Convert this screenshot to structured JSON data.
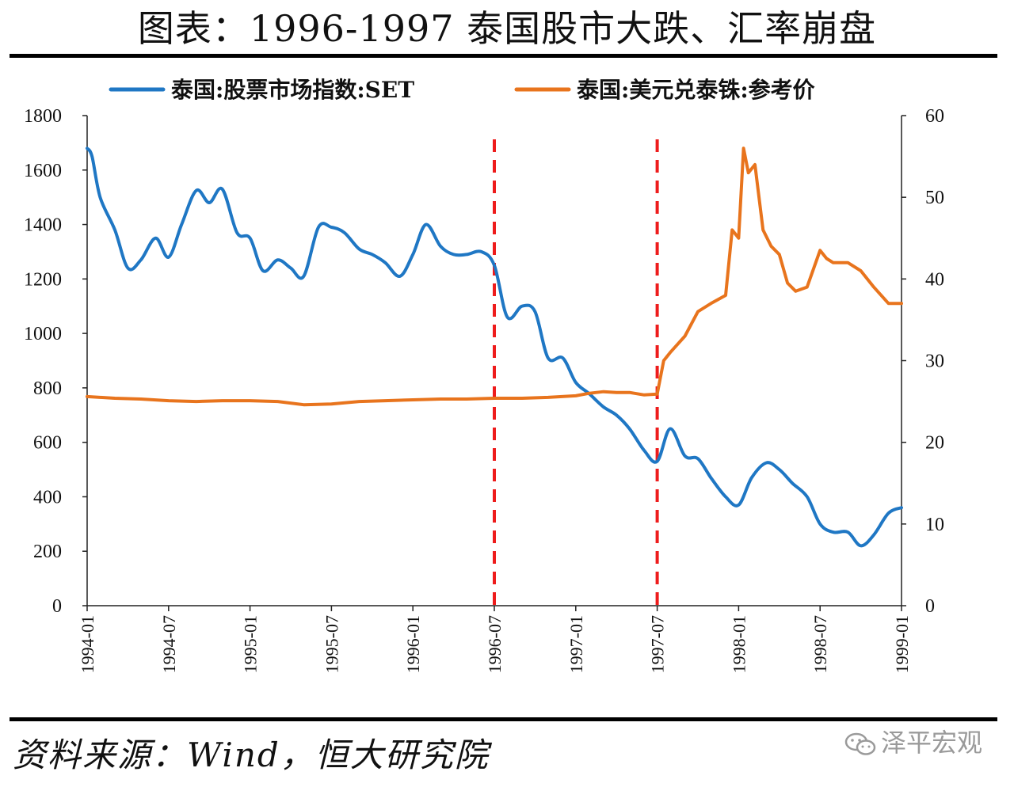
{
  "title": "图表：1996-1997 泰国股市大跌、汇率崩盘",
  "source": "资料来源：Wind，恒大研究院",
  "watermark": "泽平宏观",
  "watermark_icon": "wechat-icon",
  "colors": {
    "set": "#1f77c4",
    "fx": "#e8741d",
    "vline": "#ee1c1c",
    "axis": "#222222"
  },
  "chart_data": {
    "type": "line",
    "title": "",
    "x_tick_labels": [
      "1994-01",
      "1994-07",
      "1995-01",
      "1995-07",
      "1996-01",
      "1996-07",
      "1997-01",
      "1997-07",
      "1998-01",
      "1998-07",
      "1999-01"
    ],
    "xlim": [
      "1994-01",
      "1999-01"
    ],
    "y_left": {
      "lim": [
        0,
        1800
      ],
      "ticks": [
        0,
        200,
        400,
        600,
        800,
        1000,
        1200,
        1400,
        1600,
        1800
      ]
    },
    "y_right": {
      "lim": [
        0,
        60
      ],
      "ticks": [
        0,
        10,
        20,
        30,
        40,
        50,
        60
      ]
    },
    "legend_position": "top",
    "vertical_reference_lines": [
      {
        "x": "1996-07",
        "style": "dashed",
        "color": "#ee1c1c"
      },
      {
        "x": "1997-07",
        "style": "dashed",
        "color": "#ee1c1c"
      }
    ],
    "series": [
      {
        "name": "泰国:股票市场指数:SET",
        "axis": "left",
        "color": "#1f77c4",
        "x": [
          1994.0,
          1994.03,
          1994.08,
          1994.17,
          1994.25,
          1994.33,
          1994.42,
          1994.5,
          1994.58,
          1994.67,
          1994.75,
          1994.83,
          1994.92,
          1995.0,
          1995.08,
          1995.17,
          1995.25,
          1995.33,
          1995.42,
          1995.5,
          1995.58,
          1995.67,
          1995.75,
          1995.83,
          1995.92,
          1996.0,
          1996.08,
          1996.17,
          1996.25,
          1996.33,
          1996.42,
          1996.5,
          1996.58,
          1996.67,
          1996.75,
          1996.83,
          1996.92,
          1997.0,
          1997.08,
          1997.17,
          1997.25,
          1997.33,
          1997.42,
          1997.5,
          1997.58,
          1997.67,
          1997.75,
          1997.83,
          1997.92,
          1998.0,
          1998.08,
          1998.17,
          1998.25,
          1998.33,
          1998.42,
          1998.5,
          1998.58,
          1998.67,
          1998.75,
          1998.83,
          1998.92,
          1999.0
        ],
        "y": [
          1680,
          1650,
          1500,
          1380,
          1240,
          1270,
          1350,
          1280,
          1400,
          1525,
          1480,
          1530,
          1370,
          1350,
          1230,
          1270,
          1240,
          1210,
          1390,
          1390,
          1370,
          1310,
          1290,
          1260,
          1210,
          1290,
          1400,
          1320,
          1290,
          1290,
          1300,
          1250,
          1060,
          1100,
          1080,
          910,
          910,
          820,
          780,
          730,
          700,
          650,
          570,
          530,
          650,
          550,
          540,
          470,
          400,
          370,
          470,
          525,
          500,
          450,
          400,
          300,
          270,
          270,
          220,
          260,
          340,
          360
        ]
      },
      {
        "name": "泰国:美元兑泰铢:参考价",
        "axis": "right",
        "color": "#e8741d",
        "x": [
          1994.0,
          1994.17,
          1994.33,
          1994.5,
          1994.67,
          1994.83,
          1995.0,
          1995.17,
          1995.33,
          1995.5,
          1995.67,
          1995.83,
          1996.0,
          1996.17,
          1996.33,
          1996.5,
          1996.67,
          1996.83,
          1997.0,
          1997.08,
          1997.17,
          1997.25,
          1997.33,
          1997.42,
          1997.5,
          1997.54,
          1997.58,
          1997.67,
          1997.75,
          1997.83,
          1997.92,
          1997.96,
          1998.0,
          1998.03,
          1998.06,
          1998.1,
          1998.15,
          1998.2,
          1998.25,
          1998.3,
          1998.35,
          1998.42,
          1998.5,
          1998.54,
          1998.58,
          1998.67,
          1998.75,
          1998.83,
          1998.92,
          1999.0
        ],
        "y": [
          25.6,
          25.4,
          25.3,
          25.1,
          25.0,
          25.1,
          25.1,
          25.0,
          24.6,
          24.7,
          25.0,
          25.1,
          25.2,
          25.3,
          25.3,
          25.4,
          25.4,
          25.5,
          25.7,
          26.0,
          26.2,
          26.1,
          26.1,
          25.8,
          25.9,
          30.0,
          31.0,
          33.0,
          36.0,
          37.0,
          38.0,
          46.0,
          45.0,
          56.0,
          53.0,
          54.0,
          46.0,
          44.0,
          43.0,
          39.5,
          38.5,
          39.0,
          43.5,
          42.5,
          42.0,
          42.0,
          41.0,
          39.0,
          37.0,
          37.0
        ]
      }
    ]
  }
}
